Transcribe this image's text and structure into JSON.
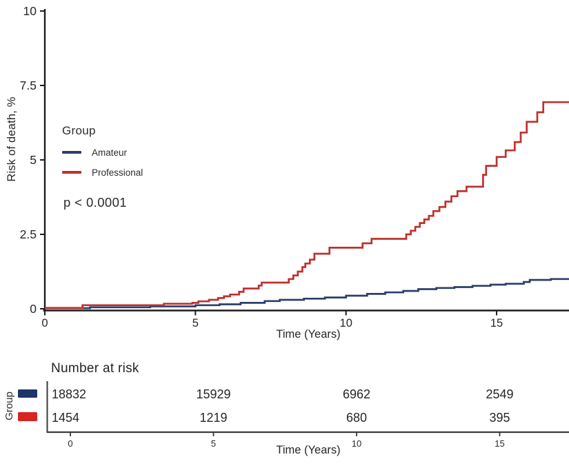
{
  "figure": {
    "legend": {
      "title": "Group",
      "items": [
        {
          "label": "Amateur",
          "color": "#2b3e6b"
        },
        {
          "label": "Professional",
          "color": "#c0302c"
        }
      ]
    },
    "p_value": "p < 0.0001"
  },
  "chart_data": {
    "type": "line",
    "subtype": "kaplan-meier-step",
    "title": "",
    "xlabel": "Time (Years)",
    "ylabel": "Risk of death, %",
    "xlim": [
      0,
      17.4
    ],
    "ylim": [
      0,
      10
    ],
    "x_ticks": [
      0,
      5,
      10,
      15
    ],
    "x_tick_labels": [
      "0",
      "5",
      "10",
      "15"
    ],
    "y_ticks": [
      0,
      2.5,
      5,
      7.5,
      10
    ],
    "y_tick_labels": [
      "0",
      "2.5",
      "5",
      "7.5",
      "10"
    ],
    "grid": false,
    "legend_position": "upper-left-inside",
    "annotation": "p < 0.0001",
    "series": [
      {
        "name": "Amateur",
        "color": "#2b3e6b",
        "steps": [
          [
            0,
            0.02
          ],
          [
            1.5,
            0.05
          ],
          [
            3.5,
            0.08
          ],
          [
            5.0,
            0.12
          ],
          [
            5.8,
            0.15
          ],
          [
            6.5,
            0.2
          ],
          [
            7.3,
            0.26
          ],
          [
            7.8,
            0.3
          ],
          [
            8.6,
            0.34
          ],
          [
            9.3,
            0.38
          ],
          [
            10.0,
            0.44
          ],
          [
            10.7,
            0.5
          ],
          [
            11.3,
            0.55
          ],
          [
            11.9,
            0.6
          ],
          [
            12.4,
            0.66
          ],
          [
            13.0,
            0.7
          ],
          [
            13.6,
            0.73
          ],
          [
            14.2,
            0.77
          ],
          [
            14.8,
            0.81
          ],
          [
            15.3,
            0.84
          ],
          [
            15.9,
            0.9
          ],
          [
            16.1,
            0.97
          ],
          [
            16.8,
            1.0
          ]
        ]
      },
      {
        "name": "Professional",
        "color": "#c0302c",
        "steps": [
          [
            0,
            0.03
          ],
          [
            1.25,
            0.12
          ],
          [
            3.95,
            0.17
          ],
          [
            4.9,
            0.2
          ],
          [
            5.1,
            0.25
          ],
          [
            5.45,
            0.3
          ],
          [
            5.75,
            0.36
          ],
          [
            5.95,
            0.42
          ],
          [
            6.15,
            0.48
          ],
          [
            6.45,
            0.57
          ],
          [
            6.6,
            0.68
          ],
          [
            7.1,
            0.78
          ],
          [
            7.2,
            0.88
          ],
          [
            8.1,
            1.0
          ],
          [
            8.25,
            1.12
          ],
          [
            8.4,
            1.25
          ],
          [
            8.55,
            1.4
          ],
          [
            8.65,
            1.52
          ],
          [
            8.8,
            1.65
          ],
          [
            8.95,
            1.85
          ],
          [
            9.45,
            2.05
          ],
          [
            10.55,
            2.2
          ],
          [
            10.85,
            2.35
          ],
          [
            12.0,
            2.5
          ],
          [
            12.15,
            2.62
          ],
          [
            12.3,
            2.75
          ],
          [
            12.45,
            2.88
          ],
          [
            12.6,
            3.0
          ],
          [
            12.75,
            3.12
          ],
          [
            12.9,
            3.28
          ],
          [
            13.1,
            3.42
          ],
          [
            13.3,
            3.6
          ],
          [
            13.5,
            3.78
          ],
          [
            13.7,
            3.95
          ],
          [
            14.0,
            4.1
          ],
          [
            14.55,
            4.5
          ],
          [
            14.65,
            4.8
          ],
          [
            15.0,
            5.1
          ],
          [
            15.3,
            5.32
          ],
          [
            15.6,
            5.6
          ],
          [
            15.8,
            5.92
          ],
          [
            16.0,
            6.28
          ],
          [
            16.35,
            6.6
          ],
          [
            16.55,
            6.94
          ],
          [
            17.4,
            6.94
          ]
        ]
      }
    ]
  },
  "risk_table": {
    "title": "Number at risk",
    "group_axis_label": "Group",
    "xlabel": "Time (Years)",
    "x_ticks": [
      0,
      5,
      10,
      15
    ],
    "x_tick_labels": [
      "0",
      "5",
      "10",
      "15"
    ],
    "rows": [
      {
        "group": "Amateur",
        "color": "#1e3568",
        "values": [
          "18832",
          "15929",
          "6962",
          "2549"
        ]
      },
      {
        "group": "Professional",
        "color": "#d92321",
        "values": [
          "1454",
          "1219",
          "680",
          "395"
        ]
      }
    ]
  }
}
